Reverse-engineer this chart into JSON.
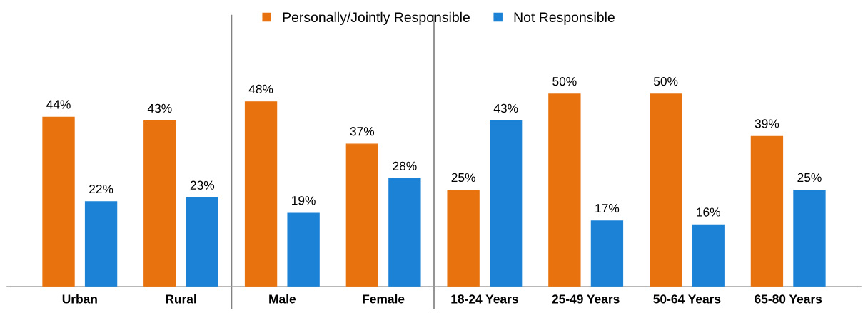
{
  "chart_data": {
    "type": "bar",
    "categories": [
      "Urban",
      "Rural",
      "Male",
      "Female",
      "18-24 Years",
      "25-49 Years",
      "50-64 Years",
      "65-80 Years"
    ],
    "series": [
      {
        "name": "Personally/Jointly Responsible",
        "color": "#e8730e",
        "values": [
          44,
          43,
          48,
          37,
          25,
          50,
          50,
          39
        ],
        "value_labels": [
          "44%",
          "43%",
          "48%",
          "37%",
          "25%",
          "50%",
          "50%",
          "39%"
        ]
      },
      {
        "name": "Not Responsible",
        "color": "#1b82d6",
        "values": [
          22,
          23,
          19,
          28,
          43,
          17,
          16,
          25
        ],
        "value_labels": [
          "22%",
          "23%",
          "19%",
          "28%",
          "43%",
          "17%",
          "16%",
          "25%"
        ]
      }
    ],
    "legend": "top",
    "grid": false
  }
}
